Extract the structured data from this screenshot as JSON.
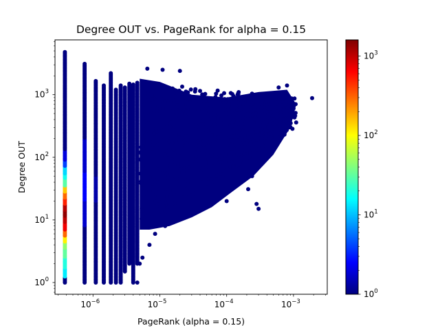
{
  "chart_data": {
    "type": "scatter",
    "title": "Degree OUT vs. PageRank for alpha = 0.15",
    "xlabel": "PageRank (alpha = 0.15)",
    "ylabel": "Degree OUT",
    "xscale": "log",
    "yscale": "log",
    "xlim": [
      2.7e-07,
      0.0032
    ],
    "ylim": [
      0.65,
      7500
    ],
    "grid": false,
    "legend": "none",
    "x_ticks": [
      {
        "value": 1e-06,
        "base": "10",
        "exp": "−6"
      },
      {
        "value": 1e-05,
        "base": "10",
        "exp": "−5"
      },
      {
        "value": 0.0001,
        "base": "10",
        "exp": "−4"
      },
      {
        "value": 0.001,
        "base": "10",
        "exp": "−3"
      }
    ],
    "y_ticks": [
      {
        "value": 1,
        "base": "10",
        "exp": "0"
      },
      {
        "value": 10,
        "base": "10",
        "exp": "1"
      },
      {
        "value": 100,
        "base": "10",
        "exp": "2"
      },
      {
        "value": 1000,
        "base": "10",
        "exp": "3"
      }
    ],
    "colormap": "jet",
    "color_scale": "log",
    "colorbar": {
      "range": [
        1,
        1600
      ],
      "ticks": [
        {
          "value": 1,
          "base": "10",
          "exp": "0"
        },
        {
          "value": 10,
          "base": "10",
          "exp": "1"
        },
        {
          "value": 100,
          "base": "10",
          "exp": "2"
        },
        {
          "value": 1000,
          "base": "10",
          "exp": "3"
        }
      ]
    },
    "discrete_columns": [
      {
        "x": 3.8e-07,
        "y_min": 1,
        "y_max": 4800
      },
      {
        "x": 7.5e-07,
        "y_min": 1,
        "y_max": 3100
      },
      {
        "x": 1.1e-06,
        "y_min": 1,
        "y_max": 1650
      },
      {
        "x": 1.45e-06,
        "y_min": 1,
        "y_max": 1400
      },
      {
        "x": 1.85e-06,
        "y_min": 1,
        "y_max": 2200
      },
      {
        "x": 2.2e-06,
        "y_min": 1,
        "y_max": 1200
      },
      {
        "x": 2.6e-06,
        "y_min": 1,
        "y_max": 1400
      },
      {
        "x": 3e-06,
        "y_min": 1.5,
        "y_max": 1300
      },
      {
        "x": 3.5e-06,
        "y_min": 2,
        "y_max": 1500
      },
      {
        "x": 4e-06,
        "y_min": 1,
        "y_max": 1450
      },
      {
        "x": 4.6e-06,
        "y_min": 2,
        "y_max": 1550
      }
    ],
    "first_column_density": [
      {
        "y": 1,
        "count": 1
      },
      {
        "y": 1.5,
        "count": 14
      },
      {
        "y": 2,
        "count": 20
      },
      {
        "y": 3,
        "count": 32
      },
      {
        "y": 4,
        "count": 45
      },
      {
        "y": 5,
        "count": 110
      },
      {
        "y": 6,
        "count": 300
      },
      {
        "y": 8,
        "count": 700
      },
      {
        "y": 10,
        "count": 1000
      },
      {
        "y": 13,
        "count": 1400
      },
      {
        "y": 16,
        "count": 1100
      },
      {
        "y": 20,
        "count": 500
      },
      {
        "y": 25,
        "count": 300
      },
      {
        "y": 30,
        "count": 150
      },
      {
        "y": 40,
        "count": 30
      },
      {
        "y": 50,
        "count": 18
      },
      {
        "y": 60,
        "count": 12
      },
      {
        "y": 80,
        "count": 4
      },
      {
        "y": 100,
        "count": 2
      }
    ],
    "cloud_hull": [
      [
        7e-06,
        7
      ],
      [
        1.4e-05,
        8
      ],
      [
        3e-05,
        11
      ],
      [
        6e-05,
        16
      ],
      [
        0.00012,
        28
      ],
      [
        0.00025,
        50
      ],
      [
        0.0005,
        110
      ],
      [
        0.0009,
        300
      ],
      [
        0.0011,
        700
      ],
      [
        0.0008,
        1200
      ],
      [
        0.0003,
        1100
      ],
      [
        0.0001,
        900
      ],
      [
        3e-05,
        1000
      ],
      [
        1e-05,
        1600
      ],
      [
        5e-06,
        1800
      ],
      [
        5e-06,
        7
      ]
    ],
    "outliers": [
      {
        "x": 0.0019,
        "y": 880
      },
      {
        "x": 0.0008,
        "y": 1400
      },
      {
        "x": 0.0006,
        "y": 1300
      },
      {
        "x": 0.0005,
        "y": 900
      },
      {
        "x": 0.00034,
        "y": 250
      },
      {
        "x": 0.00021,
        "y": 31
      },
      {
        "x": 0.00024,
        "y": 50
      },
      {
        "x": 0.00019,
        "y": 130
      },
      {
        "x": 0.0001,
        "y": 20
      },
      {
        "x": 0.00028,
        "y": 18
      },
      {
        "x": 0.0003,
        "y": 15
      },
      {
        "x": 6e-05,
        "y": 40
      },
      {
        "x": 3e-05,
        "y": 12
      },
      {
        "x": 2e-05,
        "y": 11
      },
      {
        "x": 1.5e-05,
        "y": 9
      },
      {
        "x": 1.2e-05,
        "y": 8
      },
      {
        "x": 8.5e-06,
        "y": 6
      },
      {
        "x": 7e-06,
        "y": 4
      },
      {
        "x": 5.5e-06,
        "y": 2.5
      },
      {
        "x": 5e-06,
        "y": 2
      },
      {
        "x": 4.6e-06,
        "y": 1
      },
      {
        "x": 2e-05,
        "y": 2400
      },
      {
        "x": 1.1e-05,
        "y": 2500
      },
      {
        "x": 6.5e-06,
        "y": 2600
      },
      {
        "x": 4e-05,
        "y": 1150
      },
      {
        "x": 0.00015,
        "y": 300
      },
      {
        "x": 9e-05,
        "y": 260
      }
    ]
  }
}
